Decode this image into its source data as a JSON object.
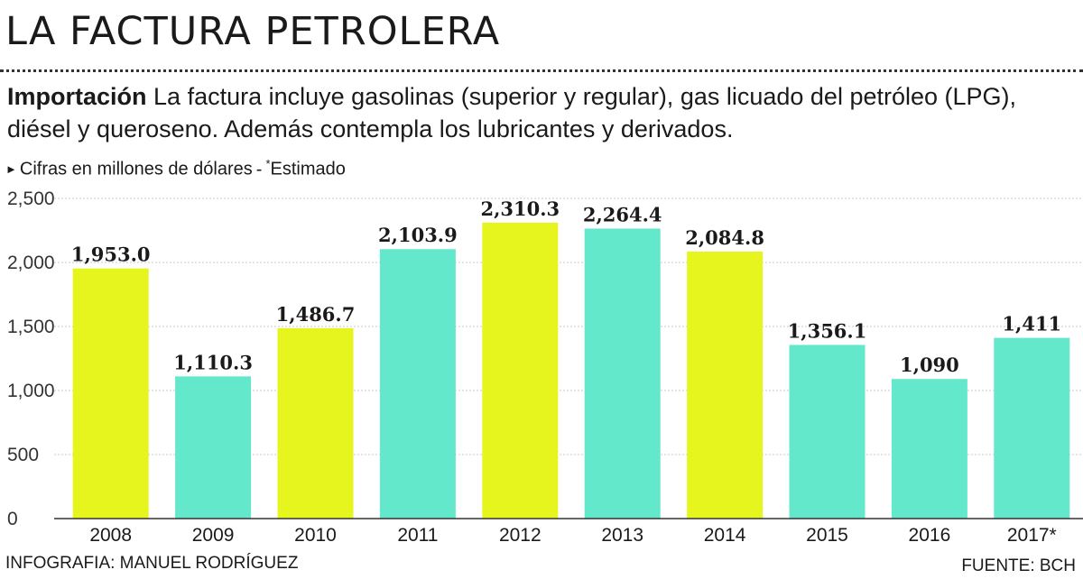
{
  "header": {
    "title": "LA FACTURA PETROLERA",
    "intro_bold": "Importación",
    "intro_text": "La factura  incluye gasolinas (superior y regular), gas licuado del petróleo (LPG), diésel y queroseno. Además contempla  los lubricantes y derivados.",
    "subtitle_units": "Cifras en millones de dólares",
    "subtitle_separator": "-",
    "subtitle_star": "*",
    "subtitle_estimate": "Estimado"
  },
  "chart_data": {
    "type": "bar",
    "categories": [
      "2008",
      "2009",
      "2010",
      "2011",
      "2012",
      "2013",
      "2014",
      "2015",
      "2016",
      "2017*"
    ],
    "values": [
      1953.0,
      1110.3,
      1486.7,
      2103.9,
      2310.3,
      2264.4,
      2084.8,
      1356.1,
      1090,
      1411
    ],
    "value_labels": [
      "1,953.0",
      "1,110.3",
      "1,486.7",
      "2,103.9",
      "2,310.3",
      "2,264.4",
      "2,084.8",
      "1,356.1",
      "1,090",
      "1,411"
    ],
    "bar_colors": [
      "#e6f51e",
      "#64e8cc",
      "#e6f51e",
      "#64e8cc",
      "#e6f51e",
      "#64e8cc",
      "#e6f51e",
      "#64e8cc",
      "#64e8cc",
      "#64e8cc"
    ],
    "yticks": [
      0,
      500,
      1000,
      1500,
      2000,
      2500
    ],
    "ytick_labels": [
      "0",
      "500",
      "1,000",
      "1,500",
      "2,000",
      "2,500"
    ],
    "ylim": [
      0,
      2500
    ],
    "grid": true,
    "title": "LA FACTURA PETROLERA",
    "xlabel": "",
    "ylabel": "Cifras en millones de dólares"
  },
  "footer": {
    "credit": "INFOGRAFIA: MANUEL RODRÍGUEZ",
    "source": "FUENTE: BCH"
  },
  "colors": {
    "yellow": "#e6f51e",
    "teal": "#64e8cc",
    "grid": "#c8c8c8"
  }
}
